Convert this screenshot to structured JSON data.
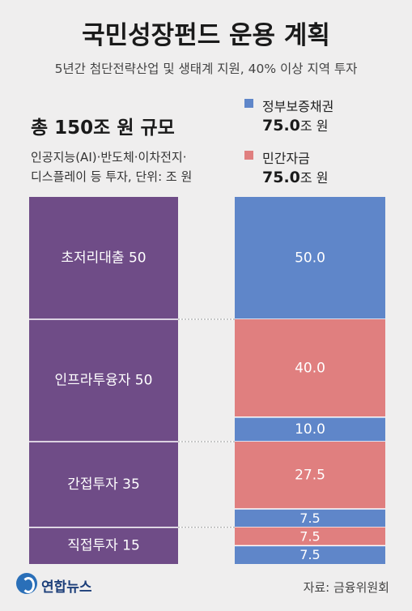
{
  "header": {
    "title": "국민성장펀드 운용 계획",
    "subtitle": "5년간 첨단전략산업 및 생태계 지원, 40% 이상 지역 투자"
  },
  "summary": {
    "total": "총 150조 원 규모",
    "desc_line1": "인공지능(AI)·반도체·이차전지·",
    "desc_line2": "디스플레이 등 투자, 단위: 조 원"
  },
  "legend": [
    {
      "name": "정부보증채권",
      "value": "75.0",
      "unit": "조 원",
      "color": "#5f86c9"
    },
    {
      "name": "민간자금",
      "value": "75.0",
      "unit": "조 원",
      "color": "#e07f7f"
    }
  ],
  "footer": {
    "logo": "연합뉴스",
    "source": "자료: 금융위원회"
  },
  "chart_data": {
    "type": "bar",
    "stacked": true,
    "total": 150,
    "unit": "조 원",
    "colors": {
      "category": "#6f4c87",
      "government": "#5f86c9",
      "private": "#e07f7f"
    },
    "categories": [
      {
        "name": "초저리대출",
        "label": "초저리대출 50",
        "value": 50,
        "government": 50,
        "private": 0,
        "government_label": "50.0",
        "private_label": ""
      },
      {
        "name": "인프라투융자",
        "label": "인프라투융자 50",
        "value": 50,
        "government": 10,
        "private": 40,
        "government_label": "10.0",
        "private_label": "40.0"
      },
      {
        "name": "간접투자",
        "label": "간접투자 35",
        "value": 35,
        "government": 7.5,
        "private": 27.5,
        "government_label": "7.5",
        "private_label": "27.5"
      },
      {
        "name": "직접투자",
        "label": "직접투자 15",
        "value": 15,
        "government": 7.5,
        "private": 7.5,
        "government_label": "7.5",
        "private_label": "7.5"
      }
    ]
  }
}
